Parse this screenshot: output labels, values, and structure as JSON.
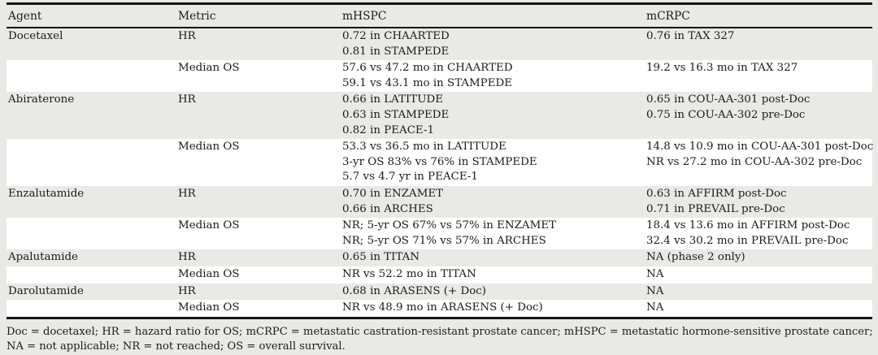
{
  "table": {
    "columns": [
      "Agent",
      "Metric",
      "mHSPC",
      "mCRPC"
    ],
    "rows": [
      {
        "agent": "Docetaxel",
        "metric": "HR",
        "mhspc": [
          "0.72 in CHAARTED",
          "0.81 in STAMPEDE"
        ],
        "mcrpc": [
          "0.76 in TAX 327"
        ],
        "shaded": true
      },
      {
        "agent": "",
        "metric": "Median OS",
        "mhspc": [
          "57.6 vs 47.2 mo in CHAARTED",
          "59.1 vs 43.1 mo in STAMPEDE"
        ],
        "mcrpc": [
          "19.2 vs 16.3 mo in TAX 327"
        ],
        "shaded": false
      },
      {
        "agent": "Abiraterone",
        "metric": "HR",
        "mhspc": [
          "0.66 in LATITUDE",
          "0.63 in STAMPEDE",
          "0.82 in PEACE-1"
        ],
        "mcrpc": [
          "0.65 in COU-AA-301 post-Doc",
          "0.75 in COU-AA-302 pre-Doc"
        ],
        "shaded": true
      },
      {
        "agent": "",
        "metric": "Median OS",
        "mhspc": [
          "53.3 vs 36.5 mo in LATITUDE",
          "3-yr OS 83% vs 76% in STAMPEDE",
          "5.7 vs 4.7 yr in PEACE-1"
        ],
        "mcrpc": [
          "14.8 vs 10.9 mo in COU-AA-301 post-Doc",
          "NR vs 27.2 mo in COU-AA-302 pre-Doc"
        ],
        "shaded": false
      },
      {
        "agent": "Enzalutamide",
        "metric": "HR",
        "mhspc": [
          "0.70 in ENZAMET",
          "0.66 in ARCHES"
        ],
        "mcrpc": [
          "0.63 in AFFIRM post-Doc",
          "0.71 in PREVAIL pre-Doc"
        ],
        "shaded": true
      },
      {
        "agent": "",
        "metric": "Median OS",
        "mhspc": [
          "NR; 5-yr OS 67% vs 57% in ENZAMET",
          "NR; 5-yr OS 71% vs 57% in ARCHES"
        ],
        "mcrpc": [
          "18.4 vs 13.6 mo in AFFIRM post-Doc",
          "32.4 vs 30.2 mo in PREVAIL pre-Doc"
        ],
        "shaded": false
      },
      {
        "agent": "Apalutamide",
        "metric": "HR",
        "mhspc": [
          "0.65 in TITAN"
        ],
        "mcrpc": [
          "NA (phase 2 only)"
        ],
        "shaded": true
      },
      {
        "agent": "",
        "metric": "Median OS",
        "mhspc": [
          "NR vs 52.2 mo in TITAN"
        ],
        "mcrpc": [
          "NA"
        ],
        "shaded": false
      },
      {
        "agent": "Darolutamide",
        "metric": "HR",
        "mhspc": [
          "0.68 in ARASENS (+ Doc)"
        ],
        "mcrpc": [
          "NA"
        ],
        "shaded": true
      },
      {
        "agent": "",
        "metric": "Median OS",
        "mhspc": [
          "NR vs 48.9 mo in ARASENS (+ Doc)"
        ],
        "mcrpc": [
          "NA"
        ],
        "shaded": false
      }
    ]
  },
  "footnote_lines": [
    "Doc = docetaxel; HR = hazard ratio for OS; mCRPC = metastatic castration-resistant prostate cancer; mHSPC = metastatic hormone-sensitive prostate cancer;",
    "NA = not applicable; NR = not reached; OS = overall survival."
  ],
  "colors": {
    "page_background": "#e9e9e6",
    "row_white": "#ffffff",
    "rule_black": "#141414",
    "text": "#1b1b1b"
  }
}
